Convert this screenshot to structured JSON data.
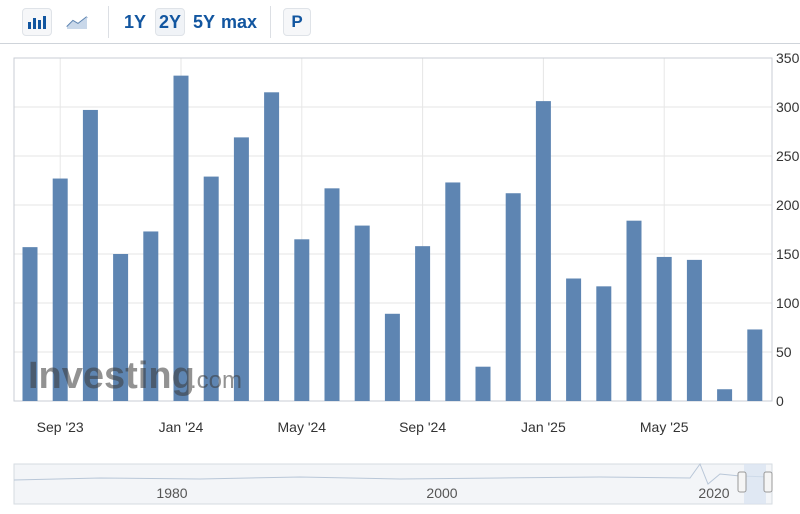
{
  "toolbar": {
    "bar_chart_icon": "bar-chart-icon",
    "line_chart_icon": "line-chart-icon",
    "range_1y": "1Y",
    "range_2y": "2Y",
    "range_5y": "5Y",
    "range_max": "max",
    "p_label": "P",
    "active_range": "2Y"
  },
  "watermark": {
    "brand": "Investing",
    "suffix": ".com"
  },
  "colors": {
    "bar": "#5e85b2",
    "grid": "#e6e6e6",
    "accent": "#1256a0"
  },
  "navigator": {
    "labels": [
      "1980",
      "2000",
      "2020"
    ]
  },
  "chart_data": {
    "type": "bar",
    "x_tick_labels": [
      "Sep '23",
      "Jan '24",
      "May '24",
      "Sep '24",
      "Jan '25",
      "May '25"
    ],
    "values": [
      157,
      227,
      297,
      150,
      173,
      332,
      229,
      269,
      315,
      165,
      217,
      179,
      89,
      158,
      223,
      35,
      212,
      306,
      125,
      117,
      184,
      147,
      144,
      12,
      73
    ],
    "y_ticks": [
      0,
      50,
      100,
      150,
      200,
      250,
      300,
      350
    ],
    "ylim": [
      0,
      350
    ],
    "y_axis_side": "right",
    "grid": true
  }
}
